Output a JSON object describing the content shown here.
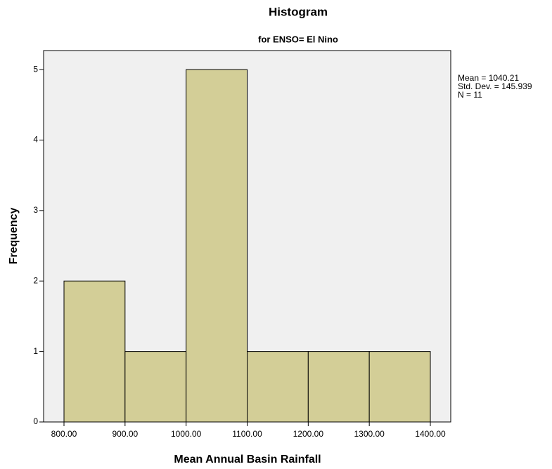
{
  "chart_data": {
    "type": "histogram",
    "title": "Histogram",
    "subtitle": "for ENSO= El Nino",
    "x_label": "Mean Annual Basin Rainfall",
    "y_label": "Frequency",
    "bins": [
      800,
      900,
      1000,
      1100,
      1200,
      1300,
      1400
    ],
    "values": [
      2,
      1,
      5,
      1,
      1,
      1
    ],
    "color": "#d3ce97",
    "plot_background": "#f0f0f0",
    "xlim": [
      766.6,
      1433.4
    ],
    "xticks": [
      {
        "value": 800,
        "label": "800.00"
      },
      {
        "value": 900,
        "label": "900.00"
      },
      {
        "value": 1000,
        "label": "1000.00"
      },
      {
        "value": 1100,
        "label": "1100.00"
      },
      {
        "value": 1200,
        "label": "1200.00"
      },
      {
        "value": 1300,
        "label": "1300.00"
      },
      {
        "value": 1400,
        "label": "1400.00"
      }
    ],
    "ylim": [
      0,
      5.27
    ],
    "yticks": [
      0,
      1,
      2,
      3,
      4,
      5
    ],
    "stats": [
      "Mean = 1040.21",
      "Std. Dev. = 145.939",
      "N = 11"
    ]
  }
}
